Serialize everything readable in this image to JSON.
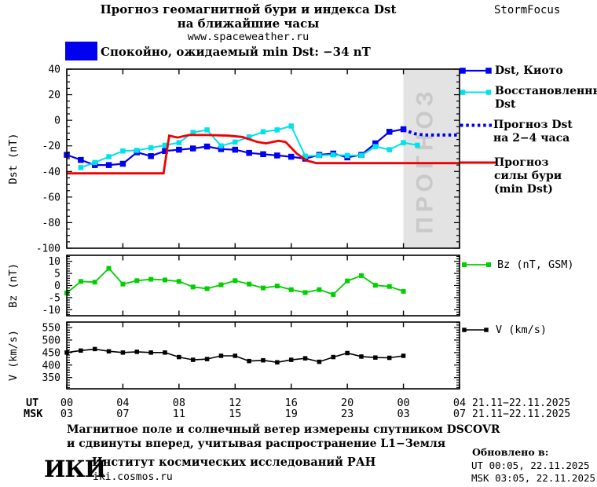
{
  "header": {
    "title_line1": "Прогноз геомагнитной бури и индекса Dst",
    "title_line2": "на ближайшие часы",
    "title_line3": "www.spaceweather.ru",
    "brand": "StormFocus"
  },
  "status": {
    "text": "Спокойно, ожидаемый min Dst: −34 nT",
    "swatch_color": "#0000f0"
  },
  "legend": {
    "dst_kyoto": "Dst, Киото",
    "restored_line1": "Восстановленный",
    "restored_line2": "Dst",
    "forecast_line1": "Прогноз Dst",
    "forecast_line2": "на 2−4 часа",
    "storm_line1": "Прогноз",
    "storm_line2": "силы бури",
    "storm_line3": "(min Dst)",
    "bz": "Bz (nT, GSM)",
    "v": "V (km/s)"
  },
  "watermark": {
    "text": "ПРОГНОЗ",
    "color": "#c9c9c9"
  },
  "xaxis": {
    "ut_label": "UT",
    "msk_label": "MSK",
    "ut_hours": [
      "00",
      "04",
      "08",
      "12",
      "16",
      "20",
      "00",
      "04"
    ],
    "msk_hours": [
      "03",
      "07",
      "11",
      "15",
      "19",
      "23",
      "03",
      "07"
    ],
    "ut_date": "21.11−22.11.2025",
    "msk_date": "21.11−22.11.2025"
  },
  "footer": {
    "note_line1": "Магнитное поле и солнечный ветер измерены спутником DSCOVR",
    "note_line2": "и сдвинуты вперед, учитывая распространение L1−Земля",
    "logo": "ИКИ",
    "institute": "Институт космических исследований РАН",
    "site": "iki.cosmos.ru",
    "updated_label": "Обновлено в:",
    "updated_ut": "UT  00:05, 22.11.2025",
    "updated_msk": "MSK 03:05, 22.11.2025"
  },
  "chart_data": [
    {
      "type": "line",
      "ylabel": "Dst (nT)",
      "xlim": [
        0,
        28
      ],
      "ylim": [
        -100,
        40
      ],
      "yticks": [
        40,
        20,
        0,
        -20,
        -40,
        -60,
        -80,
        -100
      ],
      "yminor": 5,
      "xticks": [
        0,
        4,
        8,
        12,
        16,
        20,
        24,
        28
      ],
      "forecast_band": {
        "from": 24,
        "to": 28,
        "color": "#e3e3e3"
      },
      "series": [
        {
          "name": "Dst, Киото",
          "color": "#0000f0",
          "style": "solid",
          "width": 2.2,
          "marker": "square",
          "marker_size": 7.5,
          "points": [
            [
              0,
              -27
            ],
            [
              1,
              -31
            ],
            [
              2,
              -35
            ],
            [
              3,
              -35
            ],
            [
              4,
              -34
            ],
            [
              5,
              -25
            ],
            [
              6,
              -28
            ],
            [
              7,
              -24
            ],
            [
              8,
              -23
            ],
            [
              9,
              -22
            ],
            [
              10,
              -20.5
            ],
            [
              11,
              -22.5
            ],
            [
              12,
              -23
            ],
            [
              13,
              -25.5
            ],
            [
              14,
              -26.5
            ],
            [
              15,
              -27.5
            ],
            [
              16,
              -28.5
            ],
            [
              17,
              -30
            ],
            [
              18,
              -27
            ],
            [
              19,
              -26
            ],
            [
              20,
              -29
            ],
            [
              21,
              -27
            ],
            [
              22,
              -18
            ],
            [
              23,
              -9
            ],
            [
              24,
              -7
            ]
          ]
        },
        {
          "name": "Восстановленный Dst",
          "color": "#00e2ea",
          "style": "solid",
          "width": 2,
          "marker": "square",
          "marker_size": 6.5,
          "points": [
            [
              1,
              -37
            ],
            [
              2,
              -33
            ],
            [
              3,
              -28.5
            ],
            [
              4,
              -24
            ],
            [
              5,
              -23.5
            ],
            [
              6,
              -21.5
            ],
            [
              7,
              -19.5
            ],
            [
              8,
              -17.5
            ],
            [
              9,
              -9.5
            ],
            [
              10,
              -7.5
            ],
            [
              11,
              -20
            ],
            [
              12,
              -17
            ],
            [
              13,
              -13
            ],
            [
              14,
              -9
            ],
            [
              15,
              -7.5
            ],
            [
              16,
              -4.5
            ],
            [
              17,
              -28
            ],
            [
              18,
              -27.5
            ],
            [
              19,
              -27
            ],
            [
              20,
              -27.5
            ],
            [
              21,
              -27.5
            ],
            [
              22,
              -20.5
            ],
            [
              23,
              -23
            ],
            [
              24,
              -17.5
            ],
            [
              25,
              -19.5
            ]
          ]
        },
        {
          "name": "Прогноз Dst на 2−4 часа",
          "color": "#0000f0",
          "style": "dotted",
          "width": 4,
          "marker": "none",
          "points": [
            [
              24,
              -7
            ],
            [
              24.3,
              -8.5
            ],
            [
              24.8,
              -10.5
            ],
            [
              25.5,
              -11.5
            ],
            [
              28,
              -11.5
            ]
          ]
        },
        {
          "name": "Прогноз силы бури (min Dst)",
          "color": "#f00000",
          "style": "solid",
          "width": 2.8,
          "marker": "none",
          "points": [
            [
              0,
              -41.5
            ],
            [
              6.9,
              -41.5
            ],
            [
              7.3,
              -12
            ],
            [
              7.9,
              -13.5
            ],
            [
              8.7,
              -11.5
            ],
            [
              10,
              -11.5
            ],
            [
              11.5,
              -12
            ],
            [
              12.5,
              -13
            ],
            [
              13.6,
              -17
            ],
            [
              14.2,
              -18
            ],
            [
              15.1,
              -16
            ],
            [
              15.6,
              -17
            ],
            [
              16.4,
              -26
            ],
            [
              17.1,
              -31.5
            ],
            [
              17.8,
              -33.5
            ],
            [
              28,
              -33.5
            ]
          ]
        }
      ]
    },
    {
      "type": "line",
      "ylabel": "Bz (nT)",
      "xlim": [
        0,
        28
      ],
      "ylim": [
        -12.5,
        12.5
      ],
      "yticks": [
        10,
        5,
        0,
        -5,
        -10
      ],
      "yminor": 1,
      "xticks": [
        0,
        4,
        8,
        12,
        16,
        20,
        24,
        28
      ],
      "series": [
        {
          "name": "Bz (nT, GSM)",
          "color": "#00cf00",
          "style": "solid",
          "width": 1.8,
          "marker": "square",
          "marker_size": 6,
          "points": [
            [
              0,
              -3.1
            ],
            [
              1,
              1.7
            ],
            [
              2,
              1.4
            ],
            [
              3,
              7.1
            ],
            [
              4,
              0.6
            ],
            [
              5,
              2
            ],
            [
              6,
              2.6
            ],
            [
              7,
              2.3
            ],
            [
              8,
              1.7
            ],
            [
              9,
              -0.6
            ],
            [
              10,
              -1.3
            ],
            [
              11,
              0.3
            ],
            [
              12,
              2
            ],
            [
              13,
              0.6
            ],
            [
              14,
              -1
            ],
            [
              15,
              -0.2
            ],
            [
              16,
              -1.7
            ],
            [
              17,
              -2.9
            ],
            [
              18,
              -1.7
            ],
            [
              19,
              -3.7
            ],
            [
              20,
              1.9
            ],
            [
              21,
              4.1
            ],
            [
              22,
              0.1
            ],
            [
              23,
              -0.4
            ],
            [
              24,
              -2.4
            ]
          ]
        }
      ]
    },
    {
      "type": "line",
      "ylabel": "V (km/s)",
      "xlim": [
        0,
        28
      ],
      "ylim": [
        305,
        572
      ],
      "yticks": [
        550,
        500,
        450,
        400,
        350
      ],
      "yminor": 10,
      "xticks": [
        0,
        4,
        8,
        12,
        16,
        20,
        24,
        28
      ],
      "series": [
        {
          "name": "V (km/s)",
          "color": "#000000",
          "style": "solid",
          "width": 1.6,
          "marker": "square",
          "marker_size": 5.5,
          "points": [
            [
              0,
              450
            ],
            [
              1,
              458
            ],
            [
              2,
              464
            ],
            [
              3,
              455
            ],
            [
              4,
              450
            ],
            [
              5,
              453
            ],
            [
              6,
              450
            ],
            [
              7,
              450
            ],
            [
              8,
              432
            ],
            [
              9,
              421
            ],
            [
              10,
              424
            ],
            [
              11,
              437
            ],
            [
              12,
              437
            ],
            [
              13,
              416
            ],
            [
              14,
              419
            ],
            [
              15,
              411
            ],
            [
              16,
              421
            ],
            [
              17,
              427
            ],
            [
              18,
              413
            ],
            [
              19,
              432
            ],
            [
              20,
              448
            ],
            [
              21,
              434
            ],
            [
              22,
              430
            ],
            [
              23,
              429
            ],
            [
              24,
              437
            ]
          ]
        }
      ]
    }
  ]
}
